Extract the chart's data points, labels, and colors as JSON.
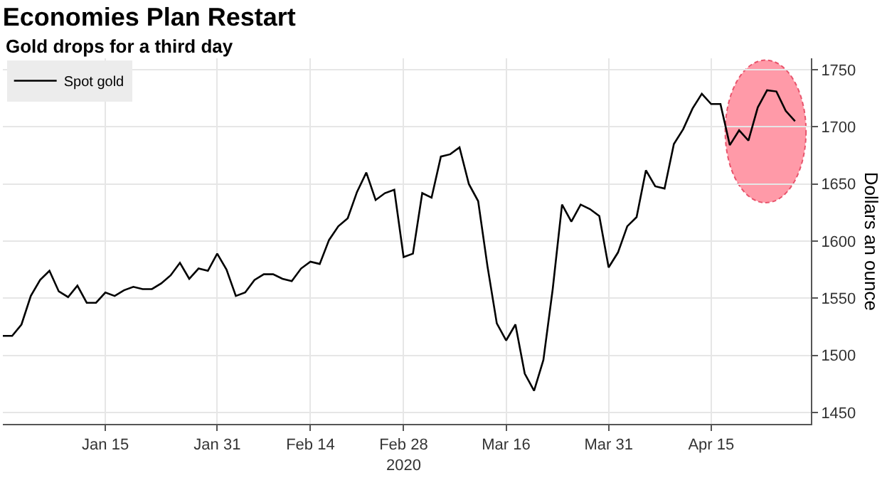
{
  "chart_data": {
    "type": "line",
    "title": "Economies Plan Restart",
    "subtitle": "Gold drops for a third day",
    "ylabel": "Dollars an ounce",
    "categories": [
      null,
      null,
      null,
      null,
      null,
      null,
      null,
      null,
      null,
      null,
      null,
      "Jan 15",
      null,
      null,
      null,
      null,
      null,
      null,
      null,
      null,
      null,
      null,
      null,
      "Jan 31",
      null,
      null,
      null,
      null,
      null,
      null,
      null,
      null,
      null,
      "Feb 14",
      null,
      null,
      null,
      null,
      null,
      null,
      null,
      null,
      null,
      "Feb 28\n2020",
      null,
      null,
      null,
      null,
      null,
      null,
      null,
      null,
      null,
      null,
      "Mar 16",
      null,
      null,
      null,
      null,
      null,
      null,
      null,
      null,
      null,
      null,
      "Mar 31",
      null,
      null,
      null,
      null,
      null,
      null,
      null,
      null,
      null,
      null,
      "Apr 15",
      null,
      null,
      null,
      null,
      null,
      null,
      null,
      null,
      null
    ],
    "series": [
      {
        "name": "Spot gold",
        "color": "#000000",
        "values": [
          1517,
          1517,
          1527,
          1552,
          1566,
          1574,
          1556,
          1551,
          1561,
          1546,
          1546,
          1555,
          1552,
          1557,
          1560,
          1558,
          1558,
          1563,
          1570,
          1581,
          1567,
          1576,
          1574,
          1589,
          1575,
          1552,
          1555,
          1566,
          1571,
          1571,
          1567,
          1565,
          1576,
          1582,
          1580,
          1601,
          1613,
          1620,
          1643,
          1660,
          1636,
          1642,
          1645,
          1586,
          1589,
          1642,
          1638,
          1674,
          1676,
          1682,
          1650,
          1635,
          1578,
          1528,
          1513,
          1527,
          1484,
          1469,
          1496,
          1558,
          1632,
          1617,
          1632,
          1628,
          1622,
          1577,
          1590,
          1613,
          1621,
          1662,
          1648,
          1646,
          1685,
          1698,
          1716,
          1729,
          1720,
          1720,
          1684,
          1697,
          1688,
          1717,
          1732,
          1731,
          1714,
          1705
        ]
      }
    ],
    "ylim": [
      1440,
      1760
    ],
    "yticks": [
      1450,
      1500,
      1550,
      1600,
      1650,
      1700,
      1750
    ],
    "grid": true,
    "legend": "top left",
    "marker": "none",
    "line_style": "solid"
  }
}
